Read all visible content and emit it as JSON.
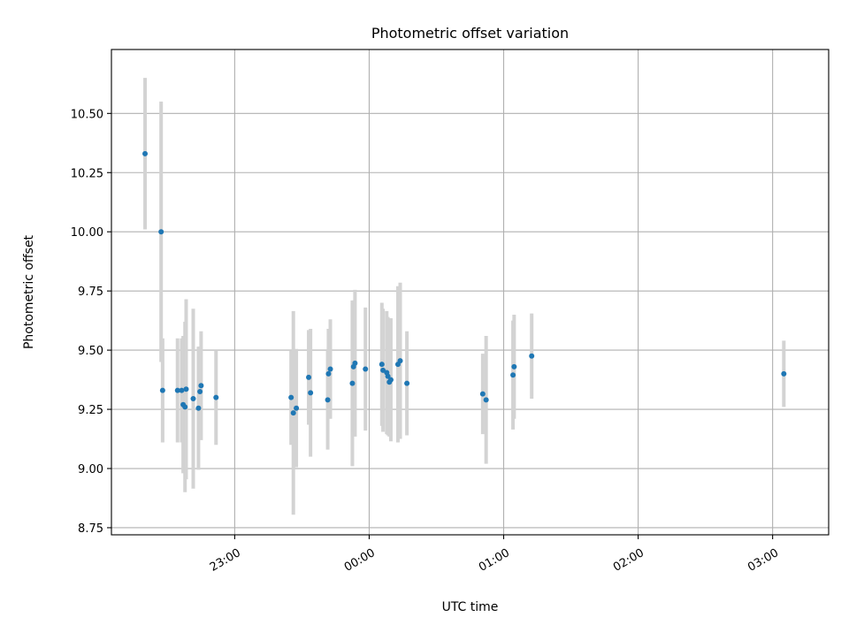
{
  "chart_data": {
    "type": "scatter",
    "title": "Photometric offset variation",
    "xlabel": "UTC time",
    "ylabel": "Photometric offset",
    "grid": true,
    "legend": "none",
    "x_axis": {
      "type": "time",
      "xlim": [
        "22:05",
        "03:25"
      ],
      "ticks": [
        "23:00",
        "00:00",
        "01:00",
        "02:00",
        "03:00"
      ]
    },
    "y_axis": {
      "ylim": [
        8.72,
        10.77
      ],
      "ticks": [
        8.75,
        9.0,
        9.25,
        9.5,
        9.75,
        10.0,
        10.25,
        10.5
      ],
      "tick_labels": [
        "8.75",
        "9.00",
        "9.25",
        "9.50",
        "9.75",
        "10.00",
        "10.25",
        "10.50"
      ]
    },
    "colors": {
      "marker": "#1f77b4",
      "errorbar": "#d3d3d3",
      "grid": "#b0b0b0"
    },
    "series": [
      {
        "points": [
          {
            "x": "22:20:00",
            "y": 10.33,
            "err": 0.32
          },
          {
            "x": "22:27:10",
            "y": 10.0,
            "err": 0.55
          },
          {
            "x": "22:27:50",
            "y": 9.33,
            "err": 0.22
          },
          {
            "x": "22:34:30",
            "y": 9.33,
            "err": 0.22
          },
          {
            "x": "22:36:20",
            "y": 9.33,
            "err": 0.22
          },
          {
            "x": "22:37:00",
            "y": 9.27,
            "err": 0.29
          },
          {
            "x": "22:37:50",
            "y": 9.26,
            "err": 0.36
          },
          {
            "x": "22:38:20",
            "y": 9.335,
            "err": 0.38
          },
          {
            "x": "22:41:30",
            "y": 9.295,
            "err": 0.38
          },
          {
            "x": "22:43:50",
            "y": 9.255,
            "err": 0.26
          },
          {
            "x": "22:44:30",
            "y": 9.325,
            "err": 0.19
          },
          {
            "x": "22:45:00",
            "y": 9.35,
            "err": 0.23
          },
          {
            "x": "22:51:40",
            "y": 9.3,
            "err": 0.2
          },
          {
            "x": "23:25:10",
            "y": 9.3,
            "err": 0.2
          },
          {
            "x": "23:26:10",
            "y": 9.235,
            "err": 0.43
          },
          {
            "x": "23:27:30",
            "y": 9.255,
            "err": 0.25
          },
          {
            "x": "23:33:00",
            "y": 9.385,
            "err": 0.2
          },
          {
            "x": "23:33:50",
            "y": 9.32,
            "err": 0.27
          },
          {
            "x": "23:41:30",
            "y": 9.29,
            "err": 0.21
          },
          {
            "x": "23:41:50",
            "y": 9.4,
            "err": 0.19
          },
          {
            "x": "23:42:40",
            "y": 9.42,
            "err": 0.21
          },
          {
            "x": "23:52:30",
            "y": 9.36,
            "err": 0.35
          },
          {
            "x": "23:53:00",
            "y": 9.43,
            "err": 0.28
          },
          {
            "x": "23:53:40",
            "y": 9.445,
            "err": 0.31
          },
          {
            "x": "23:58:20",
            "y": 9.42,
            "err": 0.26
          },
          {
            "x": "00:05:40",
            "y": 9.44,
            "err": 0.26
          },
          {
            "x": "00:06:10",
            "y": 9.415,
            "err": 0.26
          },
          {
            "x": "00:07:50",
            "y": 9.405,
            "err": 0.26
          },
          {
            "x": "00:08:20",
            "y": 9.39,
            "err": 0.25
          },
          {
            "x": "00:09:00",
            "y": 9.365,
            "err": 0.23
          },
          {
            "x": "00:09:40",
            "y": 9.375,
            "err": 0.26
          },
          {
            "x": "00:12:50",
            "y": 9.44,
            "err": 0.33
          },
          {
            "x": "00:13:50",
            "y": 9.455,
            "err": 0.33
          },
          {
            "x": "00:16:50",
            "y": 9.36,
            "err": 0.22
          },
          {
            "x": "00:50:40",
            "y": 9.315,
            "err": 0.17
          },
          {
            "x": "00:52:10",
            "y": 9.29,
            "err": 0.27
          },
          {
            "x": "01:04:10",
            "y": 9.395,
            "err": 0.23
          },
          {
            "x": "01:04:40",
            "y": 9.43,
            "err": 0.22
          },
          {
            "x": "01:12:30",
            "y": 9.475,
            "err": 0.18
          },
          {
            "x": "03:05:00",
            "y": 9.4,
            "err": 0.14
          }
        ]
      }
    ]
  }
}
